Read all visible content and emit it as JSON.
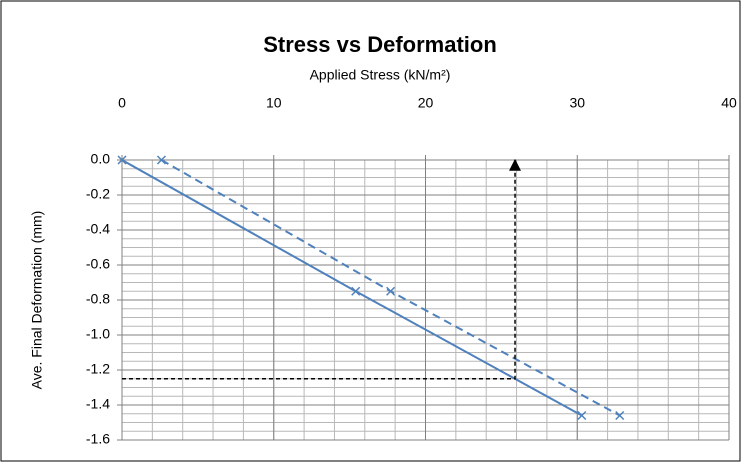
{
  "chart_data": {
    "type": "line",
    "title": "Stress vs Deformation",
    "x_label": "Applied Stress (kN/m²)",
    "y_label": "Ave. Final Deformation (mm)",
    "xlim": [
      0,
      40
    ],
    "xticks": [
      0,
      10,
      20,
      30,
      40
    ],
    "ylim": [
      -1.6,
      0
    ],
    "yticks": [
      {
        "value": 0,
        "label": "0.0"
      },
      -0.2,
      -0.4,
      -0.6,
      -0.8,
      {
        "value": -1,
        "label": "-1.0"
      },
      -1.2,
      -1.4,
      -1.6
    ],
    "x_axis_position": "top",
    "grid": true,
    "x_minor_step": 2,
    "y_minor_step": 0.05,
    "series": [
      {
        "color": "#4f81bd",
        "dash": false,
        "marker": "x",
        "x": [
          0,
          15.4,
          30.3
        ],
        "values": [
          0,
          -0.75,
          -1.46
        ]
      },
      {
        "color": "#4f81bd",
        "dash": true,
        "marker": "x",
        "x": [
          2.6,
          17.7,
          32.8
        ],
        "values": [
          0,
          -0.75,
          -1.46
        ]
      },
      {
        "color": "#000000",
        "dash": true,
        "marker": "arrow",
        "x": [
          0,
          25.9,
          25.9
        ],
        "values": [
          -1.25,
          -1.25,
          0
        ]
      }
    ]
  }
}
